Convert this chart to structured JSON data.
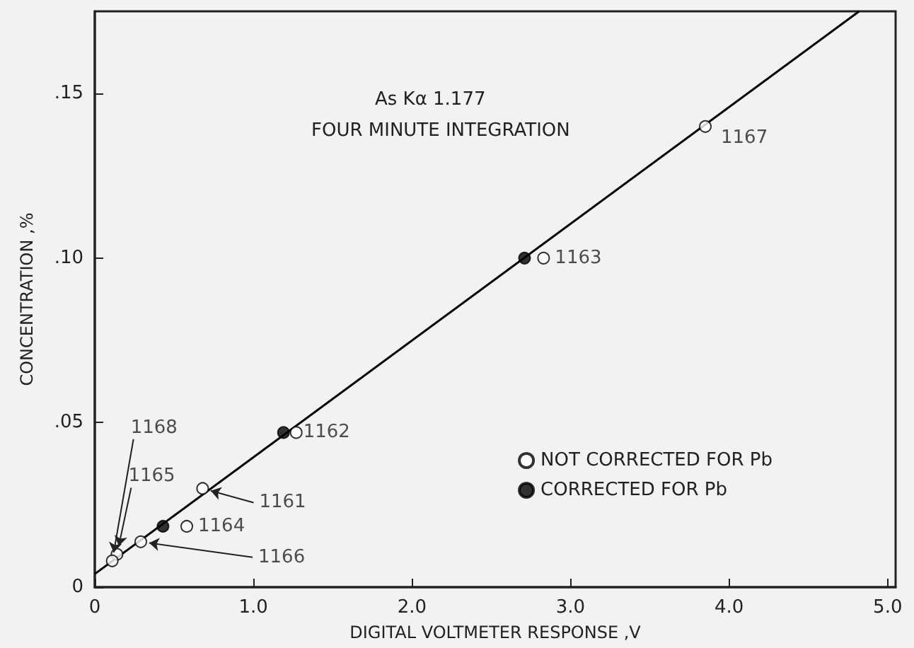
{
  "chart_data": {
    "type": "scatter",
    "xlabel": "DIGITAL VOLTMETER RESPONSE ,V",
    "ylabel": "CONCENTRATION ,%",
    "xlim": [
      0,
      5.05
    ],
    "ylim": [
      0,
      0.175
    ],
    "xticks": [
      0,
      {
        "value": 1,
        "label": "1.0"
      },
      {
        "value": 2,
        "label": "2.0"
      },
      {
        "value": 3,
        "label": "3.0"
      },
      {
        "value": 4,
        "label": "4.0"
      },
      {
        "value": 5,
        "label": "5.0"
      }
    ],
    "yticks": [
      0,
      {
        "value": 0.05,
        "label": ".05"
      },
      {
        "value": 0.1,
        "label": ".10"
      },
      {
        "value": 0.15,
        "label": ".15"
      }
    ],
    "grid": false,
    "legend": "bottom right",
    "marker": "circle",
    "series": [
      {
        "name": "NOT CORRECTED FOR Pb",
        "color": "#ffffff",
        "x": [
          3.85,
          2.83,
          1.27,
          0.68,
          0.58,
          0.29,
          0.14,
          0.11
        ],
        "values": [
          0.14,
          0.1,
          0.047,
          0.03,
          0.0185,
          0.0138,
          0.01,
          0.008
        ]
      },
      {
        "name": "CORRECTED FOR Pb",
        "color": "#000000",
        "x": [
          2.71,
          1.19,
          0.43
        ],
        "values": [
          0.1,
          0.047,
          0.0185
        ]
      },
      {
        "type": "line",
        "color": "#000000",
        "marker": "none",
        "line_style": "solid",
        "x": [
          0,
          4.82
        ],
        "values": [
          0.004,
          0.175
        ]
      }
    ],
    "annotations": [
      "As Kα 1.177",
      "FOUR MINUTE INTEGRATION",
      {
        "text": "1167",
        "x": 3.85,
        "y": 0.14
      },
      {
        "text": "1163",
        "x": 2.83,
        "y": 0.1
      },
      {
        "text": "1162",
        "x": 1.27,
        "y": 0.047
      },
      {
        "text": "1161",
        "x": 0.68,
        "y": 0.03
      },
      {
        "text": "1164",
        "x": 0.58,
        "y": 0.0185
      },
      {
        "text": "1166",
        "x": 0.29,
        "y": 0.0138
      },
      {
        "text": "1165",
        "x": 0.14,
        "y": 0.01
      },
      {
        "text": "1168",
        "x": 0.11,
        "y": 0.008
      }
    ]
  }
}
